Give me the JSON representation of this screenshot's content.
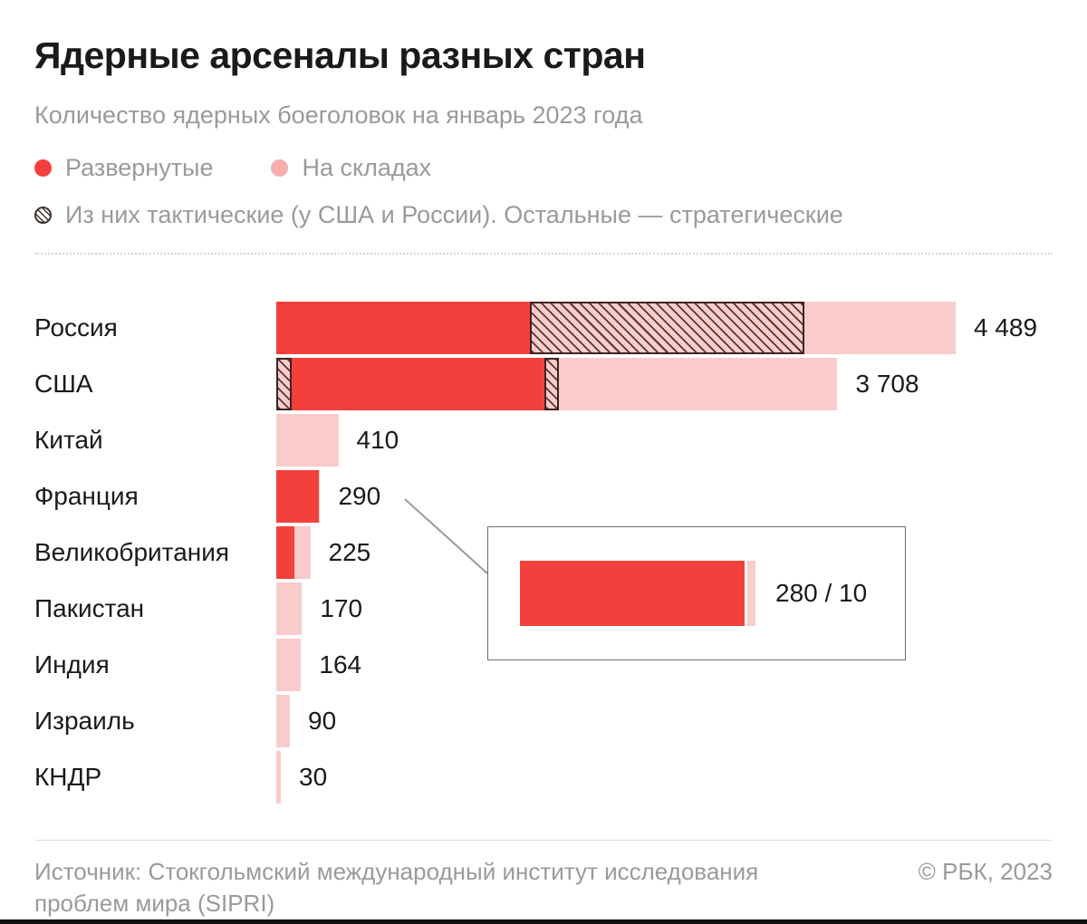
{
  "header": {
    "title": "Ядерные арсеналы разных стран",
    "subtitle": "Количество ядерных боеголовок на январь 2023 года"
  },
  "legend": {
    "deployed": "Развернутые",
    "stored": "На складах",
    "tactical": "Из них тактические (у США и России). Остальные — стратегические"
  },
  "colors": {
    "deployed_red": "#f4403c",
    "stored_pink": "#f9cbca",
    "legend_stored_pink": "#f7aeac",
    "hatch_line": "#3d2321",
    "text_gray": "#9a9a9a",
    "text_black": "#1a1a1a"
  },
  "chart_data": {
    "type": "bar",
    "orientation": "horizontal",
    "title": "Ядерные арсеналы разных стран",
    "subtitle": "Количество ядерных боеголовок на январь 2023 года",
    "legend_entries": [
      "Развернутые",
      "На складах",
      "Из них тактические (у США и России). Остальные — стратегические"
    ],
    "max_value": 4489,
    "categories": [
      "Россия",
      "США",
      "Китай",
      "Франция",
      "Великобритания",
      "Пакистан",
      "Индия",
      "Израиль",
      "КНДР"
    ],
    "rows": [
      {
        "label": "Россия",
        "total": 4489,
        "value_label": "4 489",
        "segments": [
          {
            "type": "deployed",
            "value": 1674
          },
          {
            "type": "tactical",
            "value": 1816
          },
          {
            "type": "stored",
            "value": 999
          }
        ]
      },
      {
        "label": "США",
        "total": 3708,
        "value_label": "3 708",
        "segments": [
          {
            "type": "tactical",
            "value": 100
          },
          {
            "type": "deployed",
            "value": 1670
          },
          {
            "type": "tactical",
            "value": 100
          },
          {
            "type": "stored",
            "value": 1838
          }
        ]
      },
      {
        "label": "Китай",
        "total": 410,
        "value_label": "410",
        "segments": [
          {
            "type": "stored",
            "value": 410
          }
        ]
      },
      {
        "label": "Франция",
        "total": 290,
        "value_label": "290",
        "segments": [
          {
            "type": "deployed",
            "value": 280
          },
          {
            "type": "stored",
            "value": 10
          }
        ]
      },
      {
        "label": "Великобритания",
        "total": 225,
        "value_label": "225",
        "segments": [
          {
            "type": "deployed",
            "value": 120
          },
          {
            "type": "stored",
            "value": 105
          }
        ]
      },
      {
        "label": "Пакистан",
        "total": 170,
        "value_label": "170",
        "segments": [
          {
            "type": "stored",
            "value": 170
          }
        ]
      },
      {
        "label": "Индия",
        "total": 164,
        "value_label": "164",
        "segments": [
          {
            "type": "stored",
            "value": 164
          }
        ]
      },
      {
        "label": "Израиль",
        "total": 90,
        "value_label": "90",
        "segments": [
          {
            "type": "stored",
            "value": 90
          }
        ]
      },
      {
        "label": "КНДР",
        "total": 30,
        "value_label": "30",
        "segments": [
          {
            "type": "stored",
            "value": 30
          }
        ]
      }
    ],
    "callout": {
      "for": "Франция",
      "deployed": 280,
      "stored": 10,
      "label": "280 / 10"
    }
  },
  "footer": {
    "source": "Источник: Стокгольмский международный институт исследования проблем мира (SIPRI)",
    "copyright": "© РБК, 2023"
  }
}
